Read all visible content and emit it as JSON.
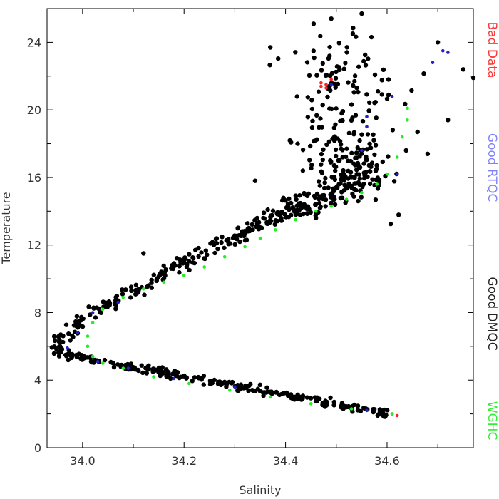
{
  "chart_data": {
    "type": "scatter",
    "title": "",
    "xlabel": "Salinity",
    "ylabel": "Temperature",
    "xlim": [
      33.93,
      34.77
    ],
    "ylim": [
      0,
      26
    ],
    "x_ticks": [
      "34.0",
      "34.2",
      "34.4",
      "34.6"
    ],
    "y_ticks": [
      "0",
      "4",
      "8",
      "12",
      "16",
      "20",
      "24"
    ],
    "grid": false,
    "legend_position": "right (vertical text)",
    "legend": [
      {
        "label": "Bad Data",
        "color": "#ff3333"
      },
      {
        "label": "Good RTQC",
        "color": "#8080ff"
      },
      {
        "label": "Good DMQC",
        "color": "#222222"
      },
      {
        "label": "WGHC",
        "color": "#33ee33"
      }
    ],
    "series": [
      {
        "name": "Good DMQC",
        "color": "#000000",
        "segments": [
          {
            "from": [
              34.6,
              2.0
            ],
            "to": [
              33.95,
              5.6
            ],
            "count": 260,
            "spread_y": 0.12
          },
          {
            "from": [
              33.94,
              5.8
            ],
            "to": [
              34.0,
              7.6
            ],
            "count": 40,
            "spread_y": 0.35
          },
          {
            "from": [
              34.0,
              7.8
            ],
            "to": [
              34.4,
              14.0
            ],
            "count": 180,
            "spread_y": 0.25
          },
          {
            "from": [
              34.4,
              14.0
            ],
            "to": [
              34.58,
              16.5
            ],
            "count": 140,
            "spread_y": 0.6
          }
        ],
        "clusters": [
          {
            "center": [
              34.52,
              17.0
            ],
            "sx": 0.08,
            "sy": 2.5,
            "count": 120
          },
          {
            "center": [
              34.53,
              21.5
            ],
            "sx": 0.1,
            "sy": 2.5,
            "count": 90
          }
        ],
        "points": [
          [
            34.49,
            25.4
          ],
          [
            34.55,
            25.7
          ],
          [
            34.7,
            24.0
          ],
          [
            34.75,
            22.4
          ],
          [
            34.77,
            21.9
          ],
          [
            34.68,
            17.4
          ],
          [
            34.72,
            19.4
          ],
          [
            34.66,
            18.7
          ],
          [
            34.34,
            15.8
          ],
          [
            34.12,
            11.5
          ],
          [
            34.37,
            23.7
          ]
        ]
      },
      {
        "name": "Good RTQC",
        "color": "#2222cc",
        "points": [
          [
            34.71,
            23.5
          ],
          [
            34.72,
            23.4
          ],
          [
            34.69,
            22.8
          ],
          [
            34.56,
            19.6
          ],
          [
            34.56,
            19.0
          ],
          [
            34.61,
            20.8
          ],
          [
            34.49,
            21.5
          ],
          [
            34.55,
            17.6
          ],
          [
            34.62,
            16.2
          ],
          [
            33.97,
            5.9
          ],
          [
            34.09,
            4.7
          ],
          [
            34.3,
            3.6
          ],
          [
            33.99,
            6.8
          ],
          [
            34.02,
            8.0
          ],
          [
            34.07,
            8.6
          ],
          [
            34.56,
            2.2
          ],
          [
            34.03,
            5.1
          ],
          [
            34.18,
            4.1
          ]
        ]
      },
      {
        "name": "Bad Data",
        "color": "#ff2222",
        "points": [
          [
            34.47,
            21.6
          ],
          [
            34.48,
            21.5
          ],
          [
            34.47,
            21.4
          ],
          [
            34.49,
            21.8
          ],
          [
            34.48,
            21.3
          ],
          [
            34.61,
            2.0
          ],
          [
            34.62,
            1.9
          ]
        ]
      },
      {
        "name": "WGHC",
        "color": "#22ee22",
        "points": [
          [
            34.61,
            2.0
          ],
          [
            34.53,
            2.3
          ],
          [
            34.45,
            2.6
          ],
          [
            34.37,
            3.0
          ],
          [
            34.29,
            3.4
          ],
          [
            34.21,
            3.8
          ],
          [
            34.14,
            4.2
          ],
          [
            34.08,
            4.7
          ],
          [
            34.04,
            5.0
          ],
          [
            34.02,
            5.4
          ],
          [
            34.01,
            6.0
          ],
          [
            34.01,
            6.6
          ],
          [
            34.02,
            7.4
          ],
          [
            34.04,
            8.2
          ],
          [
            34.08,
            8.9
          ],
          [
            34.12,
            9.4
          ],
          [
            34.16,
            9.8
          ],
          [
            34.2,
            10.2
          ],
          [
            34.24,
            10.7
          ],
          [
            34.28,
            11.3
          ],
          [
            34.32,
            11.9
          ],
          [
            34.35,
            12.4
          ],
          [
            34.38,
            12.9
          ],
          [
            34.42,
            13.5
          ],
          [
            34.46,
            14.0
          ],
          [
            34.49,
            14.3
          ],
          [
            34.52,
            14.7
          ],
          [
            34.55,
            15.1
          ],
          [
            34.58,
            15.6
          ],
          [
            34.6,
            16.2
          ],
          [
            34.62,
            17.2
          ],
          [
            34.63,
            18.4
          ],
          [
            34.64,
            19.4
          ],
          [
            34.64,
            20.1
          ]
        ]
      }
    ]
  }
}
